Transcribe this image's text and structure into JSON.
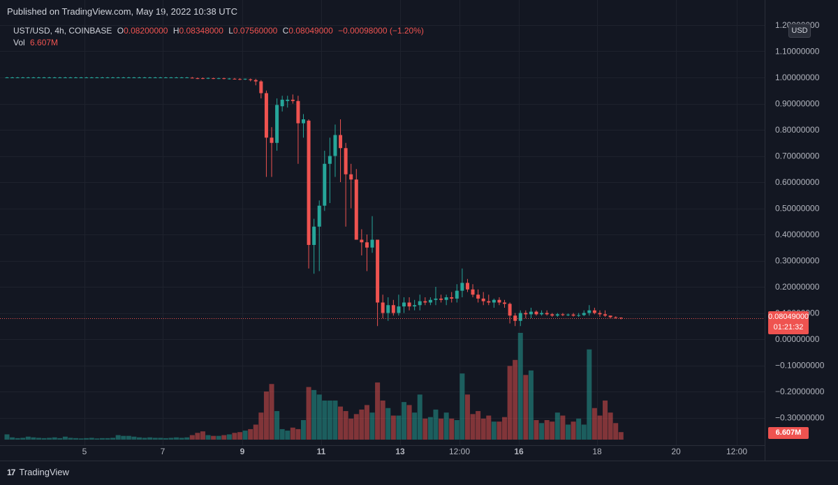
{
  "header": {
    "published": "Published on TradingView.com, May 19, 2022 10:38 UTC"
  },
  "legend": {
    "symbol": "UST/USD, 4h, COINBASE",
    "o_label": "O",
    "o": "0.08200000",
    "h_label": "H",
    "h": "0.08348000",
    "l_label": "L",
    "l": "0.07560000",
    "c_label": "C",
    "c": "0.08049000",
    "change": "−0.00098000 (−1.20%)",
    "vol_label": "Vol",
    "vol": "6.607M"
  },
  "axis": {
    "currency": "USD",
    "price_tag": "0.08049000",
    "countdown": "01:21:32",
    "vol_tag": "6.607M"
  },
  "footer": {
    "brand": "TradingView",
    "logo": "17"
  },
  "colors": {
    "up": "#26a69a",
    "down": "#ef5350",
    "background": "#131722",
    "grid": "#1e222d",
    "text": "#b2b5be"
  },
  "chart_data": {
    "type": "candlestick",
    "symbol": "UST/USD",
    "interval": "4h",
    "exchange": "COINBASE",
    "ylim": [
      -0.35,
      1.2
    ],
    "y_ticks": [
      "1.20000000",
      "1.10000000",
      "1.00000000",
      "0.90000000",
      "0.80000000",
      "0.70000000",
      "0.60000000",
      "0.50000000",
      "0.40000000",
      "0.30000000",
      "0.20000000",
      "0.10000000",
      "0.00000000",
      "−0.10000000",
      "−0.20000000",
      "−0.30000000"
    ],
    "y_tick_values": [
      1.2,
      1.1,
      1.0,
      0.9,
      0.8,
      0.7,
      0.6,
      0.5,
      0.4,
      0.3,
      0.2,
      0.1,
      0.0,
      -0.1,
      -0.2,
      -0.3
    ],
    "x_ticks": [
      "5",
      "7",
      "9",
      "11",
      "13",
      "12:00",
      "16",
      "18",
      "20",
      "12:00"
    ],
    "x_tick_bold": [
      "9",
      "11",
      "13",
      "16"
    ],
    "last_price": 0.08049,
    "candles": [
      {
        "o": 1.0,
        "h": 1.002,
        "l": 0.998,
        "c": 1.0,
        "v": 0.35
      },
      {
        "o": 1.0,
        "h": 1.002,
        "l": 0.998,
        "c": 1.0,
        "v": 0.15
      },
      {
        "o": 1.0,
        "h": 1.002,
        "l": 0.998,
        "c": 1.0,
        "v": 0.1
      },
      {
        "o": 1.0,
        "h": 1.002,
        "l": 0.998,
        "c": 1.0,
        "v": 0.12
      },
      {
        "o": 1.0,
        "h": 1.002,
        "l": 0.998,
        "c": 1.0,
        "v": 0.2
      },
      {
        "o": 1.0,
        "h": 1.002,
        "l": 0.998,
        "c": 1.0,
        "v": 0.15
      },
      {
        "o": 1.0,
        "h": 1.002,
        "l": 0.998,
        "c": 1.0,
        "v": 0.12
      },
      {
        "o": 1.0,
        "h": 1.002,
        "l": 0.998,
        "c": 1.0,
        "v": 0.1
      },
      {
        "o": 1.0,
        "h": 1.002,
        "l": 0.998,
        "c": 1.0,
        "v": 0.12
      },
      {
        "o": 1.0,
        "h": 1.002,
        "l": 0.998,
        "c": 1.0,
        "v": 0.15
      },
      {
        "o": 1.0,
        "h": 1.002,
        "l": 0.998,
        "c": 1.0,
        "v": 0.1
      },
      {
        "o": 1.0,
        "h": 1.002,
        "l": 0.998,
        "c": 1.0,
        "v": 0.2
      },
      {
        "o": 1.0,
        "h": 1.002,
        "l": 0.998,
        "c": 1.0,
        "v": 0.12
      },
      {
        "o": 1.0,
        "h": 1.002,
        "l": 0.998,
        "c": 1.0,
        "v": 0.1
      },
      {
        "o": 1.0,
        "h": 1.002,
        "l": 0.998,
        "c": 1.0,
        "v": 0.08
      },
      {
        "o": 1.0,
        "h": 1.002,
        "l": 0.998,
        "c": 1.0,
        "v": 0.1
      },
      {
        "o": 1.0,
        "h": 1.002,
        "l": 0.998,
        "c": 1.0,
        "v": 0.12
      },
      {
        "o": 1.0,
        "h": 1.002,
        "l": 0.998,
        "c": 1.0,
        "v": 0.08
      },
      {
        "o": 1.0,
        "h": 1.002,
        "l": 0.998,
        "c": 1.0,
        "v": 0.1
      },
      {
        "o": 1.0,
        "h": 1.002,
        "l": 0.998,
        "c": 1.0,
        "v": 0.1
      },
      {
        "o": 1.0,
        "h": 1.002,
        "l": 0.998,
        "c": 1.0,
        "v": 0.12
      },
      {
        "o": 1.0,
        "h": 1.002,
        "l": 0.998,
        "c": 1.0,
        "v": 0.3
      },
      {
        "o": 1.0,
        "h": 1.002,
        "l": 0.998,
        "c": 1.0,
        "v": 0.25
      },
      {
        "o": 1.0,
        "h": 1.002,
        "l": 0.998,
        "c": 1.0,
        "v": 0.25
      },
      {
        "o": 1.0,
        "h": 1.002,
        "l": 0.998,
        "c": 1.0,
        "v": 0.2
      },
      {
        "o": 1.0,
        "h": 1.002,
        "l": 0.998,
        "c": 1.0,
        "v": 0.15
      },
      {
        "o": 1.0,
        "h": 1.002,
        "l": 0.998,
        "c": 1.0,
        "v": 0.12
      },
      {
        "o": 1.0,
        "h": 1.002,
        "l": 0.998,
        "c": 1.0,
        "v": 0.15
      },
      {
        "o": 1.0,
        "h": 1.002,
        "l": 0.998,
        "c": 1.0,
        "v": 0.12
      },
      {
        "o": 1.0,
        "h": 1.002,
        "l": 0.998,
        "c": 1.0,
        "v": 0.12
      },
      {
        "o": 1.0,
        "h": 1.002,
        "l": 0.998,
        "c": 1.0,
        "v": 0.1
      },
      {
        "o": 1.0,
        "h": 1.002,
        "l": 0.998,
        "c": 1.0,
        "v": 0.12
      },
      {
        "o": 1.0,
        "h": 1.002,
        "l": 0.998,
        "c": 1.0,
        "v": 0.15
      },
      {
        "o": 1.0,
        "h": 1.002,
        "l": 0.998,
        "c": 1.0,
        "v": 0.12
      },
      {
        "o": 1.0,
        "h": 1.002,
        "l": 0.998,
        "c": 1.0,
        "v": 0.15
      },
      {
        "o": 0.999,
        "h": 1.002,
        "l": 0.996,
        "c": 0.997,
        "v": 0.3
      },
      {
        "o": 0.997,
        "h": 1.0,
        "l": 0.994,
        "c": 0.996,
        "v": 0.45
      },
      {
        "o": 0.997,
        "h": 1.0,
        "l": 0.994,
        "c": 0.995,
        "v": 0.55
      },
      {
        "o": 0.996,
        "h": 1.0,
        "l": 0.994,
        "c": 0.998,
        "v": 0.3
      },
      {
        "o": 0.997,
        "h": 0.999,
        "l": 0.994,
        "c": 0.996,
        "v": 0.25
      },
      {
        "o": 0.996,
        "h": 0.999,
        "l": 0.994,
        "c": 0.997,
        "v": 0.25
      },
      {
        "o": 0.997,
        "h": 0.999,
        "l": 0.993,
        "c": 0.995,
        "v": 0.3
      },
      {
        "o": 0.995,
        "h": 0.998,
        "l": 0.992,
        "c": 0.996,
        "v": 0.35
      },
      {
        "o": 0.995,
        "h": 0.998,
        "l": 0.992,
        "c": 0.994,
        "v": 0.45
      },
      {
        "o": 0.994,
        "h": 0.997,
        "l": 0.99,
        "c": 0.993,
        "v": 0.5
      },
      {
        "o": 0.993,
        "h": 0.996,
        "l": 0.99,
        "c": 0.995,
        "v": 0.6
      },
      {
        "o": 0.993,
        "h": 0.996,
        "l": 0.985,
        "c": 0.99,
        "v": 0.7
      },
      {
        "o": 0.99,
        "h": 0.995,
        "l": 0.97,
        "c": 0.985,
        "v": 1.0
      },
      {
        "o": 0.985,
        "h": 0.99,
        "l": 0.92,
        "c": 0.94,
        "v": 1.8
      },
      {
        "o": 0.94,
        "h": 0.95,
        "l": 0.62,
        "c": 0.77,
        "v": 3.2
      },
      {
        "o": 0.77,
        "h": 0.81,
        "l": 0.62,
        "c": 0.75,
        "v": 3.7
      },
      {
        "o": 0.75,
        "h": 0.92,
        "l": 0.72,
        "c": 0.895,
        "v": 1.9
      },
      {
        "o": 0.89,
        "h": 0.93,
        "l": 0.87,
        "c": 0.915,
        "v": 0.7
      },
      {
        "o": 0.91,
        "h": 0.93,
        "l": 0.885,
        "c": 0.915,
        "v": 0.6
      },
      {
        "o": 0.915,
        "h": 0.935,
        "l": 0.9,
        "c": 0.91,
        "v": 0.8
      },
      {
        "o": 0.91,
        "h": 0.93,
        "l": 0.67,
        "c": 0.825,
        "v": 0.7
      },
      {
        "o": 0.825,
        "h": 0.86,
        "l": 0.77,
        "c": 0.84,
        "v": 1.3
      },
      {
        "o": 0.835,
        "h": 0.84,
        "l": 0.27,
        "c": 0.36,
        "v": 3.5
      },
      {
        "o": 0.36,
        "h": 0.46,
        "l": 0.25,
        "c": 0.43,
        "v": 3.3
      },
      {
        "o": 0.43,
        "h": 0.53,
        "l": 0.26,
        "c": 0.51,
        "v": 3.0
      },
      {
        "o": 0.51,
        "h": 0.72,
        "l": 0.49,
        "c": 0.67,
        "v": 2.6
      },
      {
        "o": 0.67,
        "h": 0.77,
        "l": 0.52,
        "c": 0.7,
        "v": 2.6
      },
      {
        "o": 0.7,
        "h": 0.82,
        "l": 0.62,
        "c": 0.78,
        "v": 2.6
      },
      {
        "o": 0.78,
        "h": 0.84,
        "l": 0.6,
        "c": 0.73,
        "v": 2.2
      },
      {
        "o": 0.73,
        "h": 0.75,
        "l": 0.43,
        "c": 0.63,
        "v": 1.9
      },
      {
        "o": 0.63,
        "h": 0.67,
        "l": 0.5,
        "c": 0.61,
        "v": 1.4
      },
      {
        "o": 0.61,
        "h": 0.65,
        "l": 0.38,
        "c": 0.38,
        "v": 1.7
      },
      {
        "o": 0.38,
        "h": 0.42,
        "l": 0.32,
        "c": 0.37,
        "v": 2.0
      },
      {
        "o": 0.37,
        "h": 0.4,
        "l": 0.26,
        "c": 0.35,
        "v": 2.3
      },
      {
        "o": 0.35,
        "h": 0.47,
        "l": 0.33,
        "c": 0.38,
        "v": 1.8
      },
      {
        "o": 0.38,
        "h": 0.38,
        "l": 0.05,
        "c": 0.14,
        "v": 3.8
      },
      {
        "o": 0.14,
        "h": 0.17,
        "l": 0.08,
        "c": 0.1,
        "v": 2.6
      },
      {
        "o": 0.1,
        "h": 0.16,
        "l": 0.07,
        "c": 0.13,
        "v": 2.1
      },
      {
        "o": 0.13,
        "h": 0.15,
        "l": 0.09,
        "c": 0.1,
        "v": 1.6
      },
      {
        "o": 0.1,
        "h": 0.17,
        "l": 0.09,
        "c": 0.125,
        "v": 1.6
      },
      {
        "o": 0.125,
        "h": 0.16,
        "l": 0.1,
        "c": 0.14,
        "v": 2.5
      },
      {
        "o": 0.14,
        "h": 0.16,
        "l": 0.11,
        "c": 0.125,
        "v": 2.3
      },
      {
        "o": 0.125,
        "h": 0.15,
        "l": 0.11,
        "c": 0.13,
        "v": 1.8
      },
      {
        "o": 0.13,
        "h": 0.17,
        "l": 0.11,
        "c": 0.145,
        "v": 3.0
      },
      {
        "o": 0.145,
        "h": 0.16,
        "l": 0.13,
        "c": 0.14,
        "v": 1.4
      },
      {
        "o": 0.14,
        "h": 0.16,
        "l": 0.13,
        "c": 0.15,
        "v": 1.5
      },
      {
        "o": 0.15,
        "h": 0.2,
        "l": 0.13,
        "c": 0.155,
        "v": 2.0
      },
      {
        "o": 0.155,
        "h": 0.17,
        "l": 0.14,
        "c": 0.15,
        "v": 1.4
      },
      {
        "o": 0.15,
        "h": 0.17,
        "l": 0.13,
        "c": 0.16,
        "v": 1.8
      },
      {
        "o": 0.16,
        "h": 0.18,
        "l": 0.14,
        "c": 0.155,
        "v": 1.4
      },
      {
        "o": 0.155,
        "h": 0.21,
        "l": 0.14,
        "c": 0.185,
        "v": 1.3
      },
      {
        "o": 0.185,
        "h": 0.27,
        "l": 0.16,
        "c": 0.215,
        "v": 4.4
      },
      {
        "o": 0.215,
        "h": 0.23,
        "l": 0.18,
        "c": 0.19,
        "v": 3.0
      },
      {
        "o": 0.19,
        "h": 0.21,
        "l": 0.16,
        "c": 0.17,
        "v": 1.7
      },
      {
        "o": 0.17,
        "h": 0.19,
        "l": 0.14,
        "c": 0.155,
        "v": 1.9
      },
      {
        "o": 0.155,
        "h": 0.18,
        "l": 0.13,
        "c": 0.145,
        "v": 1.4
      },
      {
        "o": 0.145,
        "h": 0.17,
        "l": 0.13,
        "c": 0.14,
        "v": 1.6
      },
      {
        "o": 0.14,
        "h": 0.155,
        "l": 0.12,
        "c": 0.15,
        "v": 1.2
      },
      {
        "o": 0.15,
        "h": 0.16,
        "l": 0.13,
        "c": 0.14,
        "v": 1.2
      },
      {
        "o": 0.14,
        "h": 0.15,
        "l": 0.12,
        "c": 0.135,
        "v": 1.5
      },
      {
        "o": 0.135,
        "h": 0.14,
        "l": 0.06,
        "c": 0.09,
        "v": 4.9
      },
      {
        "o": 0.09,
        "h": 0.1,
        "l": 0.05,
        "c": 0.07,
        "v": 5.3
      },
      {
        "o": 0.07,
        "h": 0.11,
        "l": 0.05,
        "c": 0.1,
        "v": 7.1
      },
      {
        "o": 0.1,
        "h": 0.11,
        "l": 0.08,
        "c": 0.095,
        "v": 4.3
      },
      {
        "o": 0.095,
        "h": 0.12,
        "l": 0.08,
        "c": 0.105,
        "v": 4.6
      },
      {
        "o": 0.105,
        "h": 0.11,
        "l": 0.09,
        "c": 0.095,
        "v": 1.3
      },
      {
        "o": 0.095,
        "h": 0.11,
        "l": 0.09,
        "c": 0.1,
        "v": 1.1
      },
      {
        "o": 0.1,
        "h": 0.11,
        "l": 0.09,
        "c": 0.095,
        "v": 1.3
      },
      {
        "o": 0.095,
        "h": 0.1,
        "l": 0.085,
        "c": 0.09,
        "v": 1.2
      },
      {
        "o": 0.09,
        "h": 0.1,
        "l": 0.085,
        "c": 0.095,
        "v": 1.8
      },
      {
        "o": 0.095,
        "h": 0.1,
        "l": 0.088,
        "c": 0.092,
        "v": 1.6
      },
      {
        "o": 0.092,
        "h": 0.098,
        "l": 0.088,
        "c": 0.094,
        "v": 1.0
      },
      {
        "o": 0.094,
        "h": 0.1,
        "l": 0.086,
        "c": 0.09,
        "v": 1.2
      },
      {
        "o": 0.09,
        "h": 0.1,
        "l": 0.085,
        "c": 0.092,
        "v": 1.4
      },
      {
        "o": 0.092,
        "h": 0.11,
        "l": 0.088,
        "c": 0.1,
        "v": 1.0
      },
      {
        "o": 0.1,
        "h": 0.13,
        "l": 0.09,
        "c": 0.11,
        "v": 6.0
      },
      {
        "o": 0.11,
        "h": 0.12,
        "l": 0.095,
        "c": 0.1,
        "v": 2.1
      },
      {
        "o": 0.1,
        "h": 0.11,
        "l": 0.085,
        "c": 0.095,
        "v": 1.6
      },
      {
        "o": 0.095,
        "h": 0.11,
        "l": 0.085,
        "c": 0.09,
        "v": 2.6
      },
      {
        "o": 0.09,
        "h": 0.09,
        "l": 0.08,
        "c": 0.084,
        "v": 1.8
      },
      {
        "o": 0.084,
        "h": 0.087,
        "l": 0.078,
        "c": 0.082,
        "v": 1.1
      },
      {
        "o": 0.082,
        "h": 0.0835,
        "l": 0.0756,
        "c": 0.0805,
        "v": 0.5
      }
    ]
  }
}
